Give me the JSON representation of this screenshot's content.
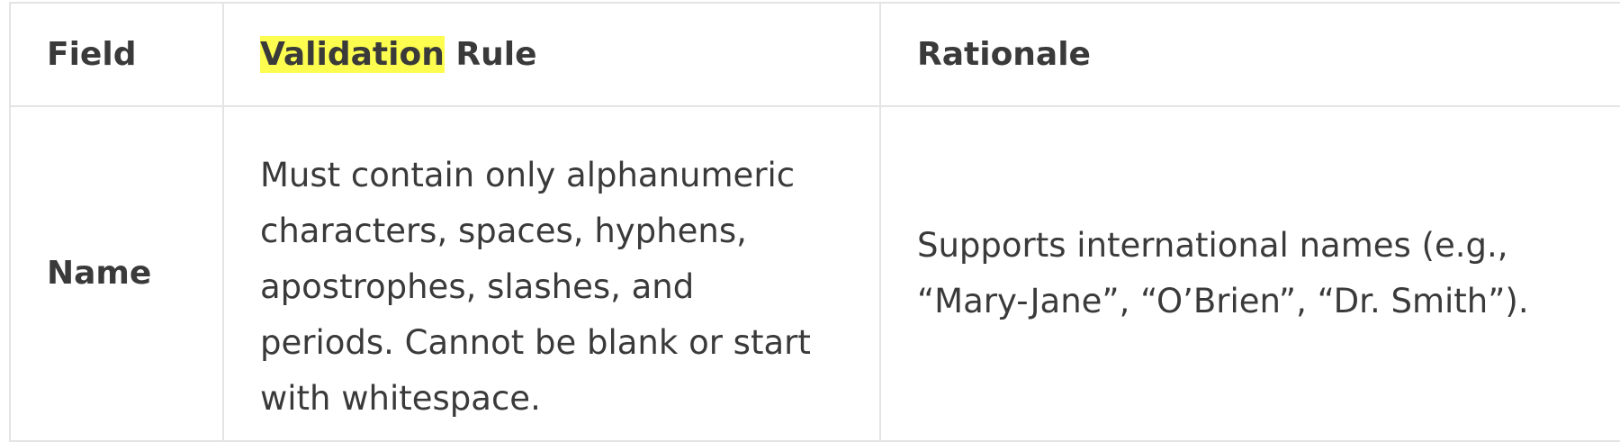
{
  "table": {
    "headers": {
      "field": "Field",
      "rule_highlight": "Validation",
      "rule_rest": " Rule",
      "rationale": "Rationale"
    },
    "rows": [
      {
        "field": "Name",
        "rule": "Must contain only alphanumeric characters, spaces, hyphens, apostrophes, slashes, and periods. Cannot be blank or start with whitespace.",
        "rationale": "Supports international names (e.g., “Mary-Jane”, “O’Brien”, “Dr. Smith”)."
      }
    ]
  },
  "colors": {
    "highlight": "#fdfd4f",
    "border": "#e4e4e4",
    "text": "#3a3a3a"
  }
}
